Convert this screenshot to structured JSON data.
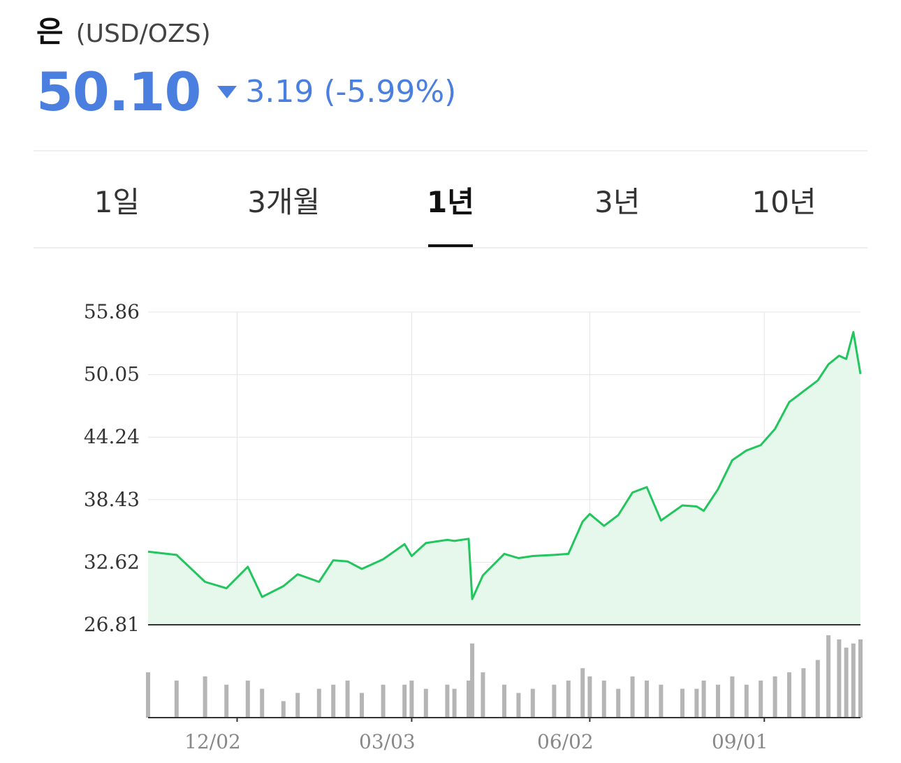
{
  "header": {
    "name": "은",
    "unit": "(USD/OZS)",
    "price": "50.10",
    "change": "3.19 (-5.99%)"
  },
  "colors": {
    "down": "#4a7fdf",
    "line": "#22c55e",
    "fill": "#e6f7ec",
    "volume": "#b5b5b5"
  },
  "tabs": [
    {
      "label": "1일",
      "active": false
    },
    {
      "label": "3개월",
      "active": false
    },
    {
      "label": "1년",
      "active": true
    },
    {
      "label": "3년",
      "active": false
    },
    {
      "label": "10년",
      "active": false
    }
  ],
  "chart_data": {
    "type": "area",
    "ylim": [
      26.81,
      55.86
    ],
    "y_ticks": [
      "55.86",
      "50.05",
      "44.24",
      "38.43",
      "32.62",
      "26.81"
    ],
    "x_ticks": [
      {
        "label": "12/02",
        "x": 0.125
      },
      {
        "label": "03/03",
        "x": 0.37
      },
      {
        "label": "06/02",
        "x": 0.62
      },
      {
        "label": "09/01",
        "x": 0.865
      }
    ],
    "x": [
      0,
      0.04,
      0.08,
      0.11,
      0.14,
      0.16,
      0.19,
      0.21,
      0.24,
      0.26,
      0.28,
      0.3,
      0.33,
      0.36,
      0.37,
      0.39,
      0.42,
      0.43,
      0.45,
      0.455,
      0.47,
      0.5,
      0.52,
      0.54,
      0.57,
      0.59,
      0.61,
      0.62,
      0.64,
      0.66,
      0.68,
      0.7,
      0.72,
      0.75,
      0.77,
      0.78,
      0.8,
      0.82,
      0.84,
      0.86,
      0.88,
      0.9,
      0.92,
      0.94,
      0.955,
      0.97,
      0.98,
      0.99,
      1.0
    ],
    "values": [
      33.6,
      33.3,
      30.8,
      30.2,
      32.2,
      29.4,
      30.4,
      31.5,
      30.8,
      32.8,
      32.7,
      32.0,
      32.9,
      34.3,
      33.2,
      34.4,
      34.7,
      34.6,
      34.8,
      29.2,
      31.4,
      33.4,
      33.0,
      33.2,
      33.3,
      33.4,
      36.4,
      37.1,
      36.0,
      37.0,
      39.1,
      39.6,
      36.5,
      37.9,
      37.8,
      37.4,
      39.4,
      42.1,
      43.0,
      43.5,
      45.0,
      47.5,
      48.5,
      49.5,
      51.0,
      51.8,
      51.5,
      54.0,
      50.1
    ],
    "volume": [
      0.55,
      0.45,
      0.5,
      0.4,
      0.45,
      0.35,
      0.2,
      0.3,
      0.35,
      0.4,
      0.45,
      0.3,
      0.4,
      0.4,
      0.45,
      0.35,
      0.4,
      0.35,
      0.45,
      0.9,
      0.55,
      0.4,
      0.3,
      0.35,
      0.4,
      0.45,
      0.6,
      0.5,
      0.45,
      0.35,
      0.5,
      0.45,
      0.4,
      0.35,
      0.35,
      0.45,
      0.4,
      0.5,
      0.4,
      0.45,
      0.5,
      0.55,
      0.6,
      0.7,
      1.0,
      0.95,
      0.85,
      0.9,
      0.95
    ]
  }
}
